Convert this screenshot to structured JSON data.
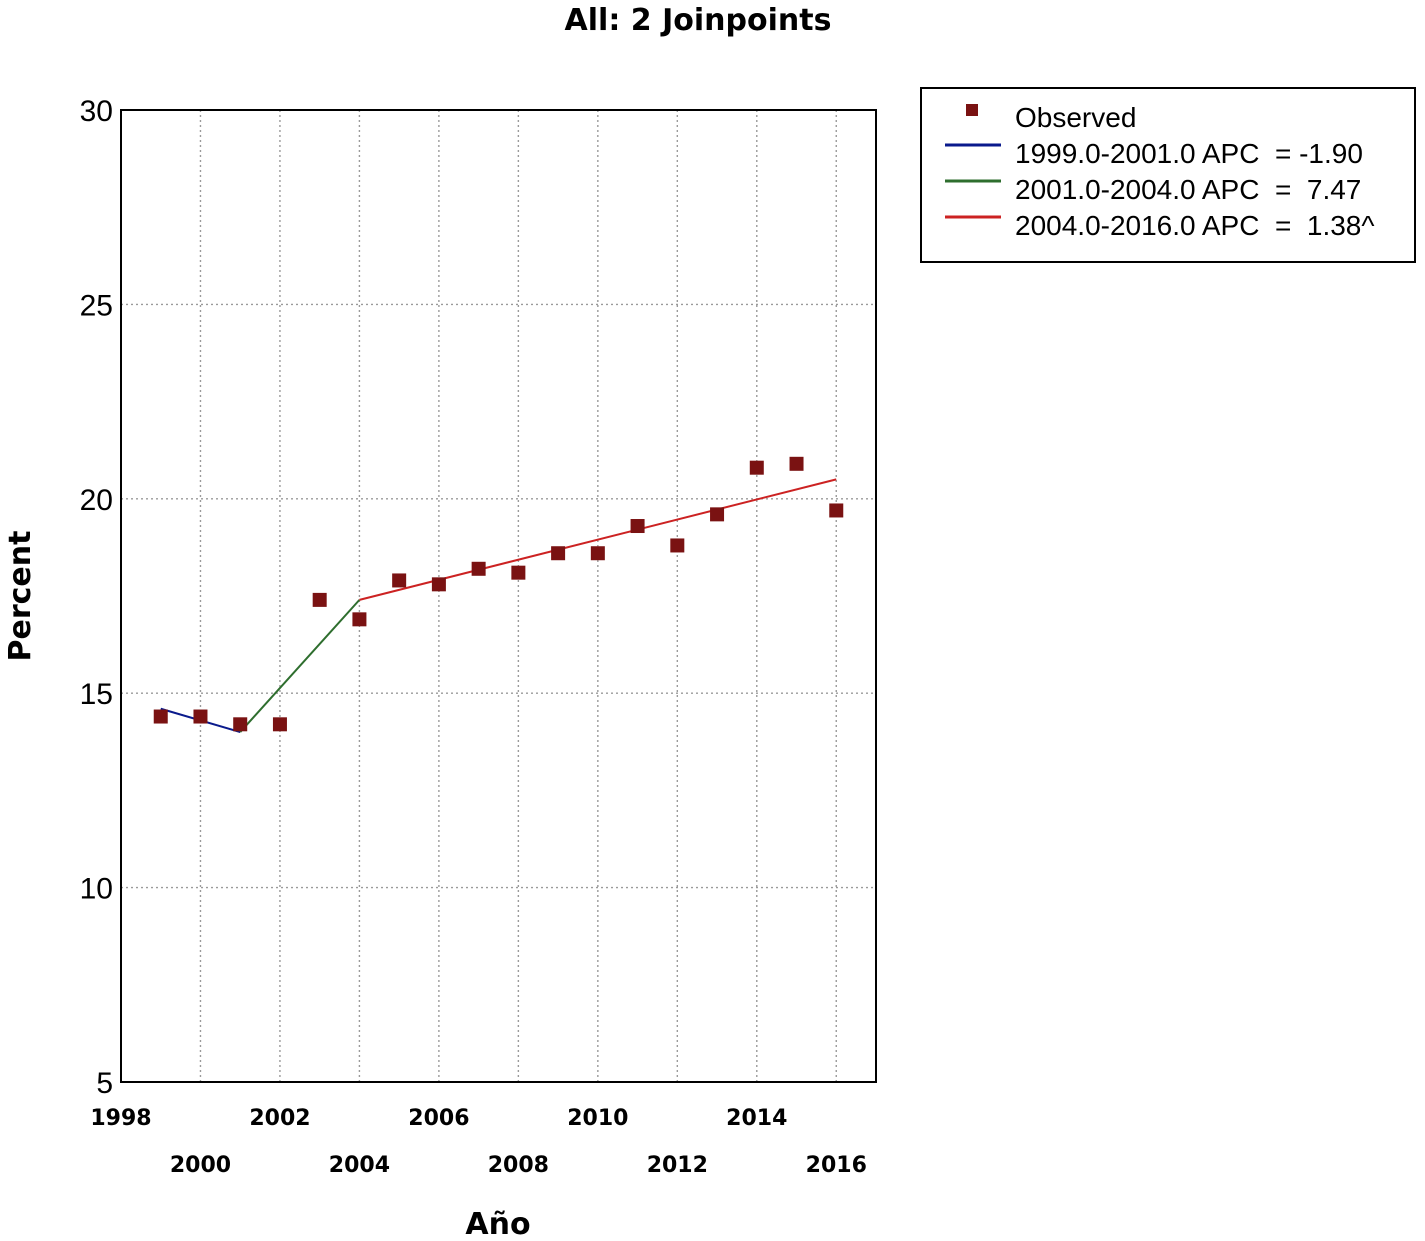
{
  "chart_data": {
    "type": "scatter",
    "title": "All: 2 Joinpoints",
    "xlabel": "Año",
    "ylabel": "Percent",
    "xlim": [
      1998,
      2017
    ],
    "ylim": [
      5,
      30
    ],
    "grid": true,
    "legend_position": "outside-top-right",
    "y_ticks": [
      "5",
      "10",
      "15",
      "20",
      "25",
      "30"
    ],
    "x_ticks_upper": [
      "1998",
      "2002",
      "2006",
      "2010",
      "2014"
    ],
    "x_ticks_lower": [
      "2000",
      "2004",
      "2008",
      "2012",
      "2016"
    ],
    "observed": {
      "name": "Observed",
      "color": "#7a1212",
      "x": [
        1999,
        2000,
        2001,
        2002,
        2003,
        2004,
        2005,
        2006,
        2007,
        2008,
        2009,
        2010,
        2011,
        2012,
        2013,
        2014,
        2015,
        2016
      ],
      "y": [
        14.4,
        14.4,
        14.2,
        14.2,
        17.4,
        16.9,
        17.9,
        17.8,
        18.2,
        18.1,
        18.6,
        18.6,
        19.3,
        18.8,
        19.6,
        20.8,
        20.9,
        19.7
      ]
    },
    "segments": [
      {
        "label": "1999.0-2001.0 APC  = -1.90",
        "color": "#0a1a8c",
        "x": [
          1999,
          2001
        ],
        "y": [
          14.6,
          14.0
        ]
      },
      {
        "label": "2001.0-2004.0 APC  =  7.47",
        "color": "#2e6e2e",
        "x": [
          2001,
          2004
        ],
        "y": [
          14.0,
          17.4
        ]
      },
      {
        "label": "2004.0-2016.0 APC  =  1.38^",
        "color": "#cc2222",
        "x": [
          2004,
          2016
        ],
        "y": [
          17.4,
          20.5
        ]
      }
    ]
  }
}
